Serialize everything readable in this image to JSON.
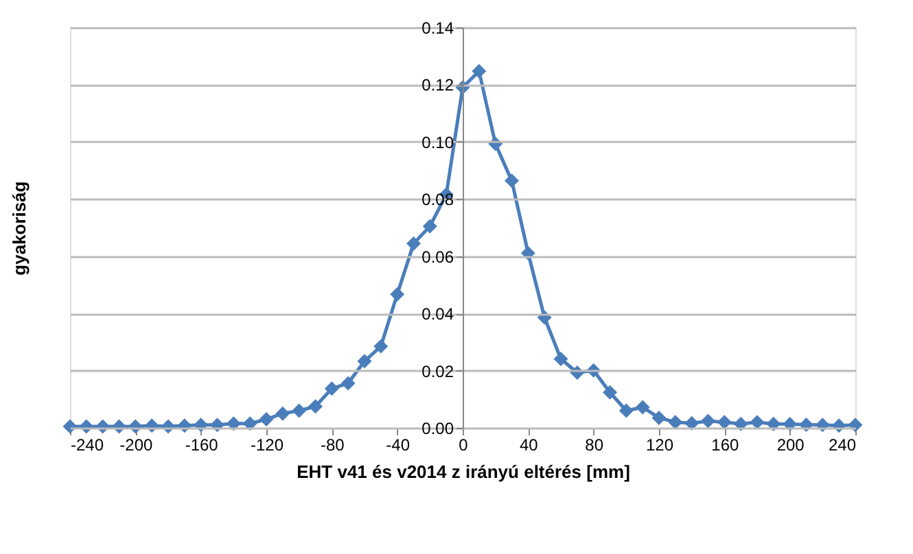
{
  "chart_data": {
    "type": "line",
    "xlabel": "EHT v41 és v2014 z irányú eltérés [mm]",
    "ylabel": "gyakoriság",
    "x": [
      -240,
      -230,
      -220,
      -210,
      -200,
      -190,
      -180,
      -170,
      -160,
      -150,
      -140,
      -130,
      -120,
      -110,
      -100,
      -90,
      -80,
      -70,
      -60,
      -50,
      -40,
      -30,
      -20,
      -10,
      0,
      10,
      20,
      30,
      40,
      50,
      60,
      70,
      80,
      90,
      100,
      110,
      120,
      130,
      140,
      150,
      160,
      170,
      180,
      190,
      200,
      210,
      220,
      230,
      240
    ],
    "series": [
      {
        "color": "#4a7ebb",
        "values": [
          0.0005,
          0.0005,
          0.0005,
          0.0005,
          0.0005,
          0.0008,
          0.0005,
          0.0008,
          0.001,
          0.001,
          0.0015,
          0.0015,
          0.003,
          0.005,
          0.006,
          0.0075,
          0.0137,
          0.0156,
          0.0233,
          0.0285,
          0.0467,
          0.0644,
          0.0705,
          0.0816,
          0.119,
          0.1247,
          0.0993,
          0.0864,
          0.0611,
          0.0386,
          0.0241,
          0.0193,
          0.0201,
          0.0124,
          0.006,
          0.0072,
          0.0035,
          0.002,
          0.0016,
          0.0024,
          0.002,
          0.0014,
          0.002,
          0.0014,
          0.0013,
          0.0011,
          0.001,
          0.0008,
          0.001
        ]
      }
    ],
    "xlim": [
      -240,
      240
    ],
    "xticks": [
      -240,
      -200,
      -160,
      -120,
      -80,
      -40,
      0,
      40,
      80,
      120,
      160,
      200,
      240
    ],
    "ylim": [
      0,
      0.14
    ],
    "yticks": [
      {
        "value": 0,
        "label": "0.00"
      },
      {
        "value": 0.02,
        "label": "0.02"
      },
      {
        "value": 0.04,
        "label": "0.04"
      },
      {
        "value": 0.06,
        "label": "0.06"
      },
      {
        "value": 0.08,
        "label": "0.08"
      },
      {
        "value": 0.1,
        "label": "0.10"
      },
      {
        "value": 0.12,
        "label": "0.12"
      },
      {
        "value": 0.14,
        "label": "0.14"
      }
    ],
    "grid": "y",
    "marker": "diamond",
    "line_style": "solid"
  }
}
